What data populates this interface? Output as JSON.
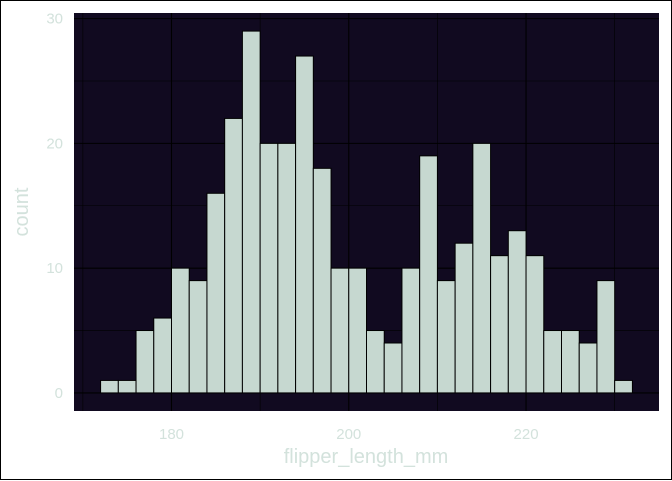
{
  "chart_data": {
    "type": "bar",
    "subtype": "histogram",
    "xlabel": "flipper_length_mm",
    "ylabel": "count",
    "xlim": [
      169.0,
      235.0
    ],
    "ylim": [
      -1.45,
      30.45
    ],
    "x_ticks": [
      180,
      200,
      220
    ],
    "x_tick_labels": [
      "180",
      "200",
      "220"
    ],
    "y_ticks": [
      0,
      10,
      20,
      30
    ],
    "y_tick_labels": [
      "0",
      "10",
      "20",
      "30"
    ],
    "grid": true,
    "bin_width": 2,
    "bin_start": 172,
    "values": [
      1,
      1,
      5,
      6,
      10,
      9,
      16,
      22,
      29,
      20,
      20,
      27,
      18,
      10,
      10,
      5,
      4,
      10,
      19,
      9,
      12,
      20,
      11,
      13,
      11,
      5,
      5,
      4,
      9,
      1
    ]
  },
  "colors": {
    "panel_background": "#110a20",
    "bar_fill": "#c6d8d0",
    "bar_outline": "#000000",
    "grid": "#000000",
    "text": "#d3e2dc"
  }
}
